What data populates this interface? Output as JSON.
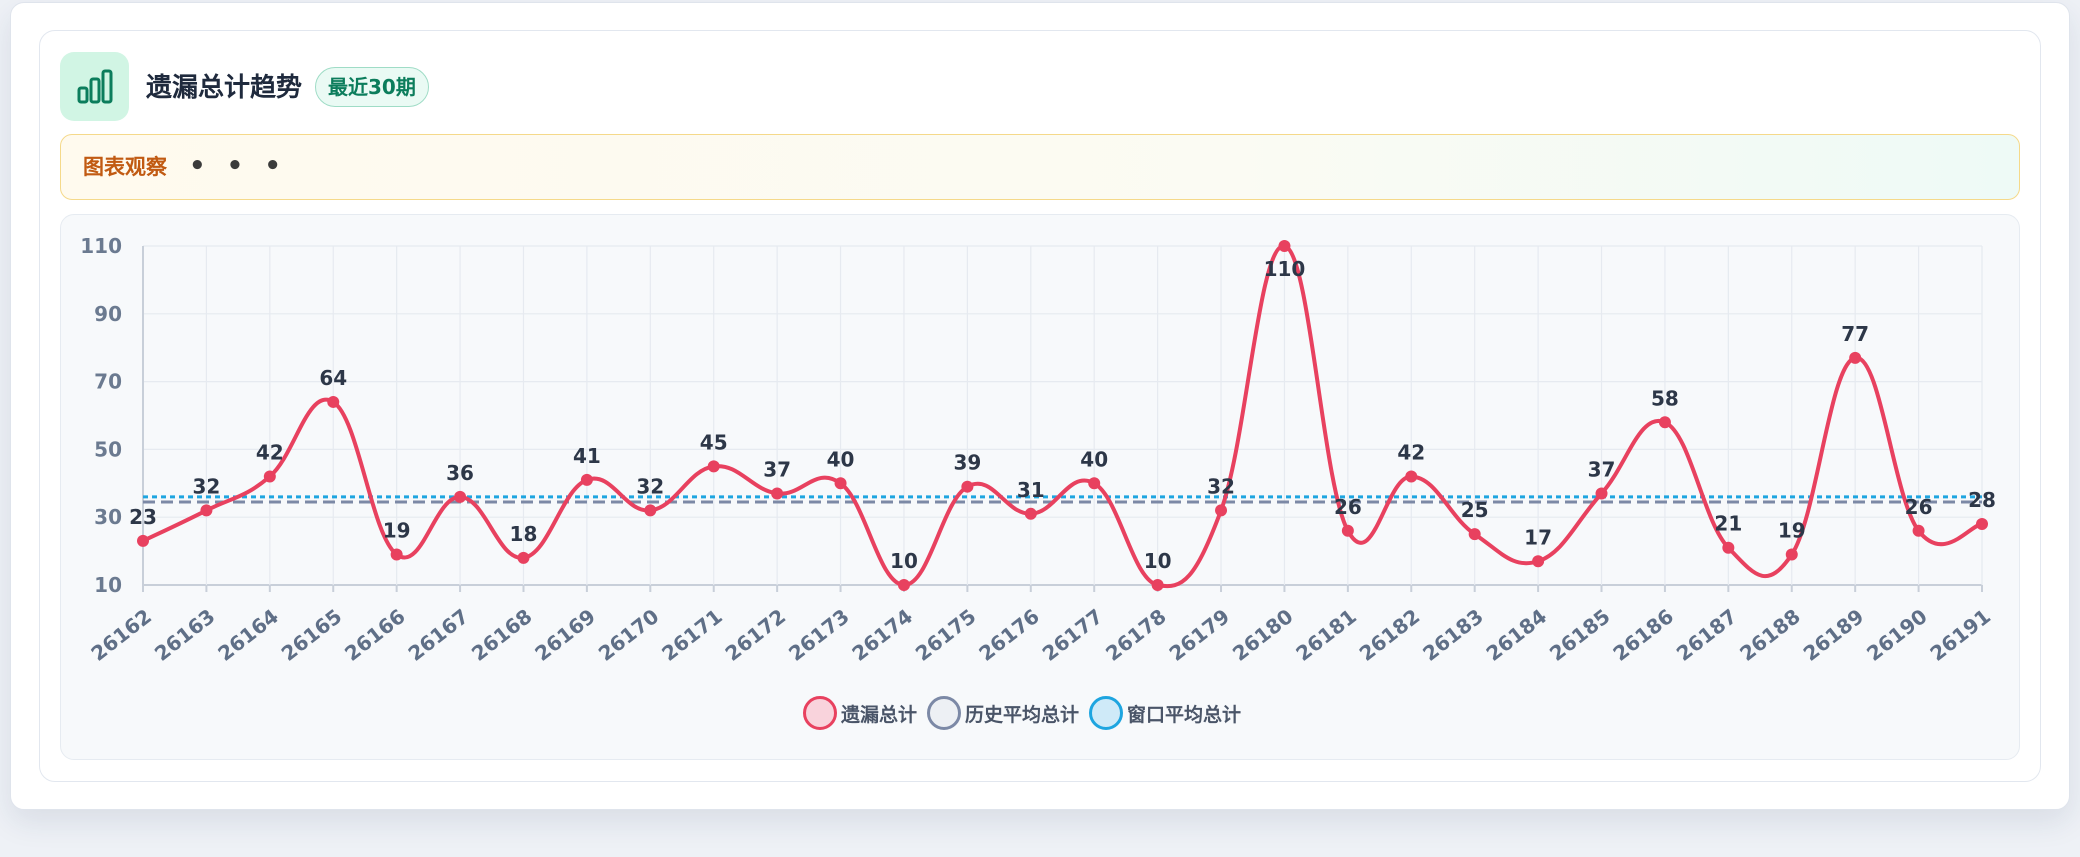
{
  "header": {
    "title": "遗漏总计趋势",
    "badge": "最近30期",
    "icon": "bar-chart-icon"
  },
  "observation": {
    "label": "图表观察",
    "dots": "• • •"
  },
  "colors": {
    "main": "#e8415f",
    "history": "#7c89a6",
    "window": "#1ea5e0",
    "accent": "#0c7d5c"
  },
  "chart_data": {
    "type": "line",
    "categories": [
      "26162",
      "26163",
      "26164",
      "26165",
      "26166",
      "26167",
      "26168",
      "26169",
      "26170",
      "26171",
      "26172",
      "26173",
      "26174",
      "26175",
      "26176",
      "26177",
      "26178",
      "26179",
      "26180",
      "26181",
      "26182",
      "26183",
      "26184",
      "26185",
      "26186",
      "26187",
      "26188",
      "26189",
      "26190",
      "26191"
    ],
    "series": [
      {
        "name": "遗漏总计",
        "values": [
          23,
          32,
          42,
          64,
          19,
          36,
          18,
          41,
          32,
          45,
          37,
          40,
          10,
          39,
          31,
          40,
          10,
          32,
          110,
          26,
          42,
          25,
          17,
          37,
          58,
          21,
          19,
          77,
          26,
          28
        ]
      },
      {
        "name": "历史平均总计",
        "constant": 34.5,
        "style": "dashed"
      },
      {
        "name": "窗口平均总计",
        "constant": 36,
        "style": "dotted"
      }
    ],
    "ylim": [
      10,
      110
    ],
    "yticks": [
      10,
      30,
      50,
      70,
      90,
      110
    ],
    "grid": true,
    "legend_position": "bottom-center",
    "xlabel": "",
    "ylabel": ""
  }
}
